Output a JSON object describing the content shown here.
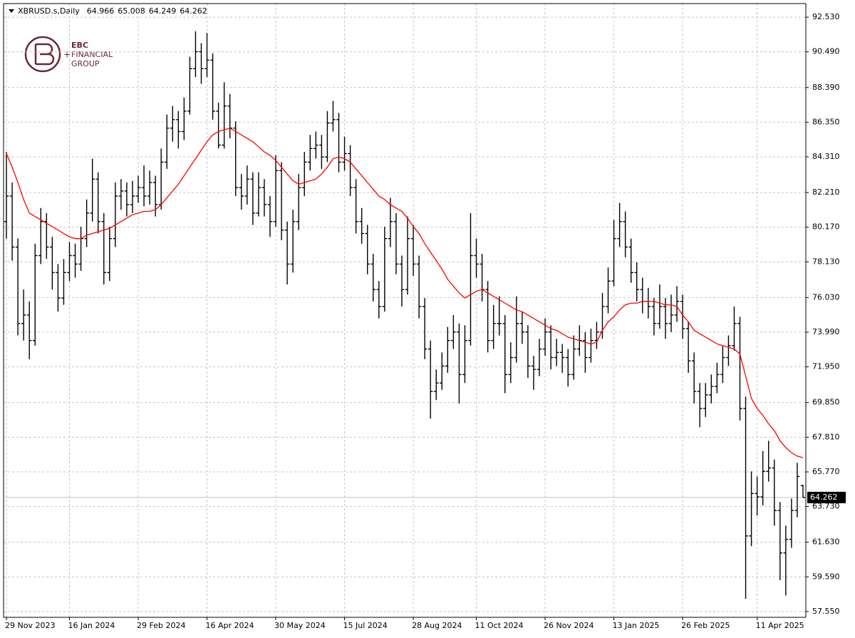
{
  "logo": {
    "lines": [
      "EBC",
      "FINANCIAL",
      "GROUP"
    ]
  },
  "chart_data": {
    "type": "ohlc",
    "title": "XBRUSD.s,Daily",
    "categories": [
      "29 Nov 2023",
      null,
      null,
      null,
      null,
      null,
      null,
      null,
      null,
      null,
      null,
      "16 Jan 2024",
      null,
      null,
      null,
      null,
      null,
      null,
      null,
      null,
      null,
      null,
      null,
      "29 Feb 2024",
      null,
      null,
      null,
      null,
      null,
      null,
      null,
      null,
      null,
      null,
      null,
      "16 Apr 2024",
      null,
      null,
      null,
      null,
      null,
      null,
      null,
      null,
      null,
      null,
      null,
      "30 May 2024",
      null,
      null,
      null,
      null,
      null,
      null,
      null,
      null,
      null,
      null,
      null,
      "15 Jul 2024",
      null,
      null,
      null,
      null,
      null,
      null,
      null,
      null,
      null,
      null,
      null,
      "28 Aug 2024",
      null,
      null,
      null,
      null,
      null,
      null,
      null,
      null,
      null,
      null,
      "11 Oct 2024",
      null,
      null,
      null,
      null,
      null,
      null,
      null,
      null,
      null,
      null,
      null,
      "26 Nov 2024",
      null,
      null,
      null,
      null,
      null,
      null,
      null,
      null,
      null,
      null,
      null,
      "13 Jan 2025",
      null,
      null,
      null,
      null,
      null,
      null,
      null,
      null,
      null,
      null,
      null,
      "26 Feb 2025",
      null,
      null,
      null,
      null,
      null,
      null,
      null,
      null,
      null,
      null,
      null,
      null,
      "11 Apr 2025",
      null,
      null,
      null,
      null,
      null,
      null,
      null,
      null
    ],
    "ohlc": [
      [
        80.5,
        84.6,
        79.5,
        82
      ],
      [
        82,
        82.8,
        78.2,
        79
      ],
      [
        79,
        79.5,
        73.8,
        74.5
      ],
      [
        74.5,
        76.5,
        73.5,
        75
      ],
      [
        75,
        75.8,
        72.4,
        73.5
      ],
      [
        73.5,
        79.2,
        73.2,
        78.5
      ],
      [
        78.5,
        81.3,
        78,
        80.5
      ],
      [
        80.5,
        81,
        78.3,
        79
      ],
      [
        79,
        79.6,
        76.5,
        77.5
      ],
      [
        77.5,
        78,
        75.2,
        76
      ],
      [
        76,
        78.3,
        75.6,
        77.5
      ],
      [
        77.5,
        79.3,
        77,
        78.5
      ],
      [
        78.5,
        79.2,
        77.2,
        78
      ],
      [
        78,
        80.2,
        77.6,
        79.5
      ],
      [
        79.5,
        81.8,
        79,
        81
      ],
      [
        81,
        84.2,
        80.5,
        83
      ],
      [
        83,
        83.4,
        79.8,
        80.5
      ],
      [
        80.5,
        81,
        76.8,
        77.5
      ],
      [
        77.5,
        80.2,
        77,
        79.5
      ],
      [
        79.5,
        82.8,
        79,
        82
      ],
      [
        82,
        83,
        81.2,
        82.3
      ],
      [
        82.3,
        82.8,
        80.8,
        81.5
      ],
      [
        81.5,
        82.9,
        81,
        82
      ],
      [
        82,
        83.2,
        81.6,
        82.5
      ],
      [
        82.5,
        83.8,
        81.4,
        82
      ],
      [
        82,
        83.5,
        81.5,
        82.8
      ],
      [
        82.8,
        83.2,
        80.8,
        81.5
      ],
      [
        81.5,
        84.8,
        81.2,
        84
      ],
      [
        84,
        86.8,
        83.6,
        86
      ],
      [
        86,
        87.3,
        85.2,
        86.5
      ],
      [
        86.5,
        87,
        84.8,
        85.8
      ],
      [
        85.8,
        87.8,
        85.3,
        87
      ],
      [
        87,
        90.2,
        86.8,
        89.5
      ],
      [
        89.5,
        91.7,
        89,
        90.5
      ],
      [
        90.5,
        91,
        88.6,
        89.5
      ],
      [
        89.5,
        91.6,
        89,
        90
      ],
      [
        90,
        90.4,
        86.5,
        87
      ],
      [
        87,
        87.5,
        84.8,
        85
      ],
      [
        85,
        88.7,
        84.8,
        87.3
      ],
      [
        87.3,
        88,
        85.4,
        86
      ],
      [
        86,
        86.4,
        82,
        82.5
      ],
      [
        82.5,
        83.3,
        81.2,
        82
      ],
      [
        82,
        83.8,
        81.5,
        83
      ],
      [
        83,
        83.4,
        80.3,
        81
      ],
      [
        81,
        83.4,
        80.8,
        82.5
      ],
      [
        82.5,
        83,
        80.8,
        81.5
      ],
      [
        81.5,
        82,
        79.6,
        80.5
      ],
      [
        80.5,
        84.4,
        80.2,
        83.5
      ],
      [
        83.5,
        84,
        79.4,
        80
      ],
      [
        80,
        80.5,
        76.8,
        78
      ],
      [
        78,
        81.2,
        77.5,
        80.5
      ],
      [
        80.5,
        83.3,
        80,
        82.5
      ],
      [
        82.5,
        84.6,
        82,
        84
      ],
      [
        84,
        85.6,
        83.5,
        84.8
      ],
      [
        84.8,
        85.8,
        84.2,
        85
      ],
      [
        85,
        85.6,
        83.6,
        84.3
      ],
      [
        84.3,
        87,
        84,
        86.3
      ],
      [
        86.3,
        87.6,
        85.8,
        86.5
      ],
      [
        86.5,
        86.9,
        83.4,
        84
      ],
      [
        84,
        85.5,
        83.5,
        84.5
      ],
      [
        84.5,
        85,
        82,
        82.5
      ],
      [
        82.5,
        83,
        79.8,
        80.5
      ],
      [
        80.5,
        81.3,
        79.2,
        79.8
      ],
      [
        79.8,
        80.3,
        77.4,
        78
      ],
      [
        78,
        78.6,
        75.8,
        76.5
      ],
      [
        76.5,
        77,
        74.8,
        75.5
      ],
      [
        75.5,
        80.2,
        75.2,
        79.5
      ],
      [
        79.5,
        81.9,
        79,
        80.5
      ],
      [
        80.5,
        81,
        77.4,
        78
      ],
      [
        78,
        78.5,
        75.5,
        76.5
      ],
      [
        76.5,
        80.8,
        76.2,
        79.5
      ],
      [
        79.5,
        80.3,
        77.3,
        78
      ],
      [
        78,
        78.5,
        74.8,
        75.5
      ],
      [
        75.5,
        76,
        72.4,
        73
      ],
      [
        73,
        73.5,
        68.9,
        70.5
      ],
      [
        70.5,
        71.8,
        70,
        71
      ],
      [
        71,
        72.8,
        70.6,
        72
      ],
      [
        72,
        74.3,
        71.6,
        73.5
      ],
      [
        73.5,
        75,
        73,
        74
      ],
      [
        74,
        74.5,
        69.8,
        71.5
      ],
      [
        71.5,
        74.4,
        71,
        73.5
      ],
      [
        73.5,
        81,
        73.2,
        78.5
      ],
      [
        78.5,
        79.5,
        77.2,
        78
      ],
      [
        78,
        78.6,
        75.8,
        76.5
      ],
      [
        76.5,
        77,
        72.8,
        73.5
      ],
      [
        73.5,
        75.6,
        73,
        74.5
      ],
      [
        74.5,
        76.1,
        73.8,
        74.5
      ],
      [
        74.5,
        75,
        70.4,
        71.5
      ],
      [
        71.5,
        73.4,
        71,
        72.5
      ],
      [
        72.5,
        76.1,
        72.2,
        74.5
      ],
      [
        74.5,
        75.2,
        73.3,
        74
      ],
      [
        74,
        74.4,
        71.3,
        72
      ],
      [
        72,
        72.6,
        70.6,
        71.8
      ],
      [
        71.8,
        73.6,
        71.4,
        73
      ],
      [
        73,
        74.8,
        72.6,
        74
      ],
      [
        74,
        74.4,
        71.8,
        72.5
      ],
      [
        72.5,
        73.6,
        72,
        72.8
      ],
      [
        72.8,
        73.3,
        71.6,
        72.5
      ],
      [
        72.5,
        73,
        70.8,
        71.5
      ],
      [
        71.5,
        73.8,
        71.2,
        73
      ],
      [
        73,
        74.4,
        72.6,
        73.5
      ],
      [
        73.5,
        74,
        71.6,
        72.5
      ],
      [
        72.5,
        74.2,
        72.2,
        73.5
      ],
      [
        73.5,
        74.6,
        73,
        74
      ],
      [
        74,
        76.3,
        73.6,
        75.5
      ],
      [
        75.5,
        77.8,
        75.1,
        77
      ],
      [
        77,
        80.6,
        76.7,
        79.5
      ],
      [
        79.5,
        81.6,
        79,
        80.5
      ],
      [
        80.5,
        81.1,
        78.4,
        79
      ],
      [
        79,
        79.5,
        76.9,
        77.5
      ],
      [
        77.5,
        78.1,
        75.8,
        76.5
      ],
      [
        76.5,
        77.2,
        75.1,
        75.8
      ],
      [
        75.8,
        76.6,
        74.8,
        75.5
      ],
      [
        75.5,
        76,
        73.8,
        74.5
      ],
      [
        74.5,
        76.8,
        74.2,
        75.5
      ],
      [
        75.5,
        76,
        73.6,
        74.5
      ],
      [
        74.5,
        76.2,
        74,
        75
      ],
      [
        75,
        76.7,
        74.6,
        75.8
      ],
      [
        75.8,
        76.2,
        73.6,
        74.2
      ],
      [
        74.2,
        74.6,
        71.6,
        72.3
      ],
      [
        72.3,
        72.8,
        69.8,
        70.5
      ],
      [
        70.5,
        71,
        68.4,
        69.5
      ],
      [
        69.5,
        71,
        69,
        70.3
      ],
      [
        70.3,
        71.5,
        69.8,
        70.8
      ],
      [
        70.8,
        72.2,
        70.4,
        71.5
      ],
      [
        71.5,
        73.2,
        71,
        72.5
      ],
      [
        72.5,
        73.8,
        72,
        73.2
      ],
      [
        73.2,
        75.5,
        72.9,
        74.5
      ],
      [
        74.5,
        74.9,
        68.8,
        69.5
      ],
      [
        69.5,
        70.2,
        58.3,
        62
      ],
      [
        62,
        65.8,
        61.4,
        64.5
      ],
      [
        64.5,
        65.5,
        63.2,
        64.3
      ],
      [
        64.3,
        67,
        63.8,
        65.8
      ],
      [
        65.8,
        67.6,
        65.2,
        66
      ],
      [
        66,
        66.5,
        62.6,
        63.5
      ],
      [
        63.5,
        64,
        59.4,
        61
      ],
      [
        61,
        62.6,
        58.5,
        61.8
      ],
      [
        61.8,
        64.2,
        61.3,
        63.5
      ],
      [
        63.5,
        66.3,
        63.1,
        65.5
      ],
      [
        64.966,
        65.008,
        64.249,
        64.262
      ]
    ],
    "bar_color": "#000000",
    "series": [
      {
        "color": "#ff0000",
        "values": [
          84.5,
          83.7,
          82.8,
          81.8,
          81,
          80.8,
          80.6,
          80.4,
          80.2,
          80,
          79.8,
          79.6,
          79.5,
          79.5,
          79.7,
          79.8,
          79.9,
          80,
          80.1,
          80.3,
          80.5,
          80.7,
          80.9,
          81,
          81.1,
          81.1,
          81.2,
          81.5,
          81.9,
          82.3,
          82.7,
          83.2,
          83.7,
          84.2,
          84.7,
          85.2,
          85.6,
          85.8,
          85.9,
          86,
          85.8,
          85.6,
          85.4,
          85.2,
          84.9,
          84.6,
          84.4,
          84.1,
          83.7,
          83.3,
          82.9,
          82.7,
          82.8,
          82.9,
          83,
          83.3,
          83.7,
          84.2,
          84.3,
          84.2,
          84,
          83.6,
          83.2,
          82.8,
          82.4,
          82,
          81.8,
          81.5,
          81.3,
          81.1,
          80.7,
          80.2,
          79.8,
          79.2,
          78.7,
          78.2,
          77.7,
          77.1,
          76.7,
          76.3,
          76,
          76.2,
          76.4,
          76.5,
          76.3,
          76.1,
          75.9,
          75.7,
          75.5,
          75.3,
          75.2,
          75,
          74.8,
          74.6,
          74.4,
          74.2,
          74.1,
          73.9,
          73.7,
          73.6,
          73.5,
          73.4,
          73.3,
          73.4,
          74.1,
          74.6,
          74.9,
          75.3,
          75.6,
          75.7,
          75.7,
          75.8,
          75.8,
          75.8,
          75.7,
          75.6,
          75.6,
          75.5,
          75,
          74.6,
          74.1,
          73.9,
          73.7,
          73.5,
          73.3,
          73.2,
          73.1,
          73,
          72.7,
          71.4,
          70.1,
          69.5,
          69.1,
          68.6,
          68.2,
          67.6,
          67.2,
          66.9,
          66.7,
          66.6
        ]
      }
    ],
    "last_price": 64.262,
    "last_price_color": "#c0c0c0",
    "ylim": [
      57.21,
      93.33
    ],
    "yticks": [
      {
        "value": 57.55,
        "label": "57.550"
      },
      {
        "value": 59.59,
        "label": "59.590"
      },
      {
        "value": 61.63,
        "label": "61.630"
      },
      {
        "value": 63.73,
        "label": "63.730"
      },
      {
        "value": 65.77,
        "label": "65.770"
      },
      {
        "value": 67.81,
        "label": "67.810"
      },
      {
        "value": 69.85,
        "label": "69.850"
      },
      {
        "value": 71.95,
        "label": "71.950"
      },
      {
        "value": 73.99,
        "label": "73.990"
      },
      {
        "value": 76.03,
        "label": "76.030"
      },
      {
        "value": 78.13,
        "label": "78.130"
      },
      {
        "value": 80.17,
        "label": "80.170"
      },
      {
        "value": 82.21,
        "label": "82.210"
      },
      {
        "value": 84.31,
        "label": "84.310"
      },
      {
        "value": 86.35,
        "label": "86.350"
      },
      {
        "value": 88.39,
        "label": "88.390"
      },
      {
        "value": 90.49,
        "label": "90.490"
      },
      {
        "value": 92.53,
        "label": "92.530"
      }
    ],
    "grid": true
  }
}
